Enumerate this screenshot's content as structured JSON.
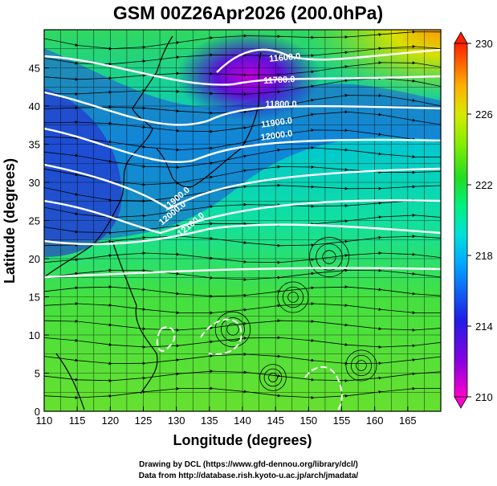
{
  "title": "GSM 00Z26Apr2026 (200.0hPa)",
  "xlabel": "Longitude (degrees)",
  "ylabel": "Latitude  (degrees)",
  "credits": {
    "line1": "Drawing by DCL (https://www.gfd-dennou.org/library/dcl/)",
    "line2": "Data from http://database.rish.kyoto-u.ac.jp/arch/jmadata/"
  },
  "colorbar": {
    "min": 210,
    "max": 230,
    "tick_labels": [
      "230",
      "226",
      "222",
      "218",
      "214",
      "210"
    ],
    "colors": [
      "#ff00cc",
      "#7a00e0",
      "#1a1ae0",
      "#00c8ff",
      "#00ffa0",
      "#22dd22",
      "#b8ff00",
      "#ffcc00",
      "#ff7a00",
      "#ff2000"
    ]
  },
  "map": {
    "lon_range": [
      110,
      170
    ],
    "lat_range": [
      0,
      50
    ],
    "x_tick_labels": [
      "110",
      "115",
      "120",
      "125",
      "130",
      "135",
      "140",
      "145",
      "150",
      "155",
      "160",
      "165"
    ],
    "y_tick_labels": [
      "0",
      "5",
      "10",
      "15",
      "20",
      "25",
      "30",
      "35",
      "40",
      "45"
    ],
    "contour_labels": [
      "11600.0",
      "11700.0",
      "11800.0",
      "11900.0",
      "12000.0",
      "11900.0",
      "12000.0",
      "12100.0"
    ],
    "field_description": "200 hPa temperature (shaded, K) with geopotential height contours and streamlines"
  },
  "chart_data": {
    "type": "heatmap",
    "title": "GSM 00Z26Apr2026 (200.0hPa)",
    "xlabel": "Longitude (degrees)",
    "ylabel": "Latitude  (degrees)",
    "xlim": [
      110,
      170
    ],
    "ylim": [
      0,
      50
    ],
    "colorbar_range": [
      210,
      230
    ],
    "contours": [
      {
        "level": 11600.0
      },
      {
        "level": 11700.0
      },
      {
        "level": 11800.0
      },
      {
        "level": 11900.0
      },
      {
        "level": 12000.0
      },
      {
        "level": 12100.0
      }
    ],
    "grid": true
  }
}
